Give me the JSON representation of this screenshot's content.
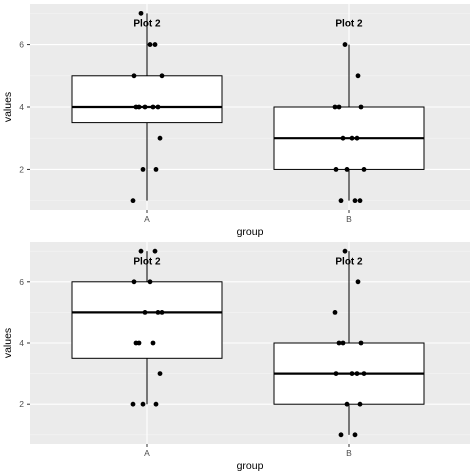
{
  "colors": {
    "panel": "#EBEBEB",
    "grid_major": "#FFFFFF",
    "grid_minor": "#F5F5F5",
    "box_fill": "#FFFFFF",
    "box_line": "#000000",
    "point": "#000000",
    "tick_label": "#4D4D4D",
    "axis_title": "#000000"
  },
  "chart_data": [
    {
      "type": "box",
      "xlabel": "group",
      "ylabel": "values",
      "categories": [
        "A",
        "B"
      ],
      "yticks": [
        2,
        4,
        6
      ],
      "ylim": [
        0.7,
        7.3
      ],
      "grid": true,
      "annotations": [
        "Plot 2",
        "Plot 2"
      ],
      "boxes": [
        {
          "group": "A",
          "whisker_low": 1,
          "q1": 3.5,
          "median": 4,
          "q3": 5,
          "whisker_high": 7
        },
        {
          "group": "B",
          "whisker_low": 1,
          "q1": 2,
          "median": 3,
          "q3": 4,
          "whisker_high": 6
        }
      ],
      "points": [
        {
          "group": "A",
          "values": [
            1,
            2,
            2,
            3,
            4,
            4,
            4,
            4,
            4,
            5,
            5,
            6,
            6,
            7
          ]
        },
        {
          "group": "B",
          "values": [
            1,
            1,
            1,
            2,
            2,
            2,
            3,
            3,
            3,
            4,
            4,
            4,
            5,
            6
          ]
        }
      ]
    },
    {
      "type": "box",
      "xlabel": "group",
      "ylabel": "values",
      "categories": [
        "A",
        "B"
      ],
      "yticks": [
        2,
        4,
        6
      ],
      "ylim": [
        0.7,
        7.3
      ],
      "grid": true,
      "annotations": [
        "Plot 2",
        "Plot 2"
      ],
      "boxes": [
        {
          "group": "A",
          "whisker_low": 2,
          "q1": 3.5,
          "median": 5,
          "q3": 6,
          "whisker_high": 7
        },
        {
          "group": "B",
          "whisker_low": 1,
          "q1": 2,
          "median": 3,
          "q3": 4,
          "whisker_high": 7
        }
      ],
      "points": [
        {
          "group": "A",
          "values": [
            2,
            2,
            2,
            3,
            4,
            4,
            4,
            5,
            5,
            5,
            6,
            6,
            7,
            7
          ]
        },
        {
          "group": "B",
          "values": [
            1,
            1,
            2,
            2,
            3,
            3,
            3,
            3,
            4,
            4,
            4,
            5,
            6,
            7
          ]
        }
      ]
    }
  ]
}
